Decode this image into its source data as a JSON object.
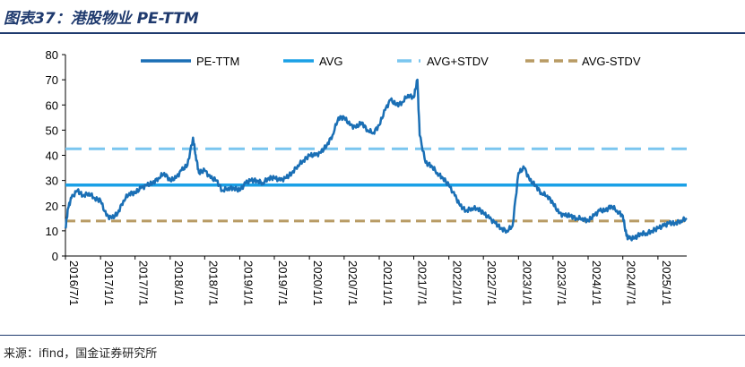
{
  "title": "图表37：港股物业 PE-TTM",
  "source": "来源：ifind，国金证券研究所",
  "chart_data": {
    "type": "line",
    "title": "图表37：港股物业 PE-TTM",
    "xlabel": "",
    "ylabel": "",
    "ylim": [
      0,
      80
    ],
    "yticks": [
      0,
      10,
      20,
      30,
      40,
      50,
      60,
      70,
      80
    ],
    "xticks": [
      "2016/7/1",
      "2017/1/1",
      "2017/7/1",
      "2018/1/1",
      "2018/7/1",
      "2019/1/1",
      "2019/7/1",
      "2020/1/1",
      "2020/7/1",
      "2021/1/1",
      "2021/7/1",
      "2022/1/1",
      "2022/7/1",
      "2023/1/1",
      "2023/7/1",
      "2024/1/1",
      "2024/7/1",
      "2025/1/1"
    ],
    "xrange": [
      "2016/7/1",
      "2025/6/1"
    ],
    "grid": false,
    "legend_position": "top",
    "series": [
      {
        "name": "PE-TTM",
        "color": "#1a6fb5",
        "style": "solid",
        "points": [
          [
            "2016/7/1",
            11
          ],
          [
            "2016/7/15",
            19
          ],
          [
            "2016/8/1",
            23
          ],
          [
            "2016/9/1",
            26
          ],
          [
            "2016/10/1",
            24
          ],
          [
            "2016/11/1",
            25
          ],
          [
            "2016/12/1",
            23
          ],
          [
            "2017/1/1",
            22
          ],
          [
            "2017/2/1",
            16
          ],
          [
            "2017/3/1",
            15
          ],
          [
            "2017/4/1",
            17
          ],
          [
            "2017/5/1",
            22
          ],
          [
            "2017/6/1",
            25
          ],
          [
            "2017/7/1",
            25
          ],
          [
            "2017/8/1",
            27
          ],
          [
            "2017/9/1",
            28
          ],
          [
            "2017/10/1",
            29
          ],
          [
            "2017/11/1",
            31
          ],
          [
            "2017/12/1",
            33
          ],
          [
            "2018/1/1",
            30
          ],
          [
            "2018/2/1",
            31
          ],
          [
            "2018/3/1",
            34
          ],
          [
            "2018/4/1",
            36
          ],
          [
            "2018/5/1",
            47
          ],
          [
            "2018/5/15",
            40
          ],
          [
            "2018/6/1",
            33
          ],
          [
            "2018/7/1",
            34
          ],
          [
            "2018/8/1",
            31
          ],
          [
            "2018/9/1",
            30
          ],
          [
            "2018/10/1",
            26
          ],
          [
            "2018/11/1",
            27
          ],
          [
            "2018/12/1",
            27
          ],
          [
            "2019/1/1",
            26
          ],
          [
            "2019/2/1",
            29
          ],
          [
            "2019/3/1",
            30
          ],
          [
            "2019/4/1",
            30
          ],
          [
            "2019/5/1",
            29
          ],
          [
            "2019/6/1",
            31
          ],
          [
            "2019/7/1",
            31
          ],
          [
            "2019/8/1",
            30
          ],
          [
            "2019/9/1",
            31
          ],
          [
            "2019/10/1",
            33
          ],
          [
            "2019/11/1",
            36
          ],
          [
            "2019/12/1",
            38
          ],
          [
            "2020/1/1",
            40
          ],
          [
            "2020/2/1",
            40
          ],
          [
            "2020/3/1",
            41
          ],
          [
            "2020/4/1",
            44
          ],
          [
            "2020/5/1",
            48
          ],
          [
            "2020/6/1",
            55
          ],
          [
            "2020/7/1",
            55
          ],
          [
            "2020/8/1",
            52
          ],
          [
            "2020/9/1",
            51
          ],
          [
            "2020/10/1",
            53
          ],
          [
            "2020/11/1",
            50
          ],
          [
            "2020/12/1",
            49
          ],
          [
            "2021/1/1",
            52
          ],
          [
            "2021/2/1",
            58
          ],
          [
            "2021/3/1",
            62
          ],
          [
            "2021/4/1",
            60
          ],
          [
            "2021/5/1",
            61
          ],
          [
            "2021/6/1",
            64
          ],
          [
            "2021/7/1",
            63
          ],
          [
            "2021/7/20",
            70
          ],
          [
            "2021/8/1",
            48
          ],
          [
            "2021/9/1",
            37
          ],
          [
            "2021/10/1",
            36
          ],
          [
            "2021/11/1",
            33
          ],
          [
            "2021/12/1",
            31
          ],
          [
            "2022/1/1",
            28
          ],
          [
            "2022/2/1",
            24
          ],
          [
            "2022/3/1",
            20
          ],
          [
            "2022/4/1",
            18
          ],
          [
            "2022/5/1",
            19
          ],
          [
            "2022/6/1",
            19
          ],
          [
            "2022/7/1",
            17
          ],
          [
            "2022/8/1",
            15
          ],
          [
            "2022/9/1",
            13
          ],
          [
            "2022/10/1",
            11
          ],
          [
            "2022/11/1",
            10
          ],
          [
            "2022/12/1",
            12
          ],
          [
            "2023/1/1",
            33
          ],
          [
            "2023/2/1",
            35
          ],
          [
            "2023/3/1",
            30
          ],
          [
            "2023/4/1",
            28
          ],
          [
            "2023/5/1",
            25
          ],
          [
            "2023/6/1",
            24
          ],
          [
            "2023/7/1",
            21
          ],
          [
            "2023/8/1",
            17
          ],
          [
            "2023/9/1",
            16
          ],
          [
            "2023/10/1",
            16
          ],
          [
            "2023/11/1",
            15
          ],
          [
            "2023/12/1",
            15
          ],
          [
            "2024/1/1",
            14
          ],
          [
            "2024/2/1",
            16
          ],
          [
            "2024/3/1",
            18
          ],
          [
            "2024/4/1",
            18
          ],
          [
            "2024/5/1",
            20
          ],
          [
            "2024/6/1",
            18
          ],
          [
            "2024/7/1",
            16
          ],
          [
            "2024/7/20",
            8
          ],
          [
            "2024/8/1",
            7
          ],
          [
            "2024/9/1",
            7
          ],
          [
            "2024/10/1",
            9
          ],
          [
            "2024/11/1",
            9
          ],
          [
            "2024/12/1",
            10
          ],
          [
            "2025/1/1",
            11
          ],
          [
            "2025/2/1",
            12
          ],
          [
            "2025/3/1",
            13
          ],
          [
            "2025/4/1",
            13
          ],
          [
            "2025/5/1",
            14
          ],
          [
            "2025/6/1",
            15
          ]
        ]
      },
      {
        "name": "AVG",
        "color": "#1aa0e6",
        "style": "solid",
        "value": 28.2
      },
      {
        "name": "AVG+STDV",
        "color": "#7ac6ef",
        "style": "dash",
        "value": 42.6
      },
      {
        "name": "AVG-STDV",
        "color": "#b89b64",
        "style": "dash",
        "value": 13.9
      }
    ]
  }
}
